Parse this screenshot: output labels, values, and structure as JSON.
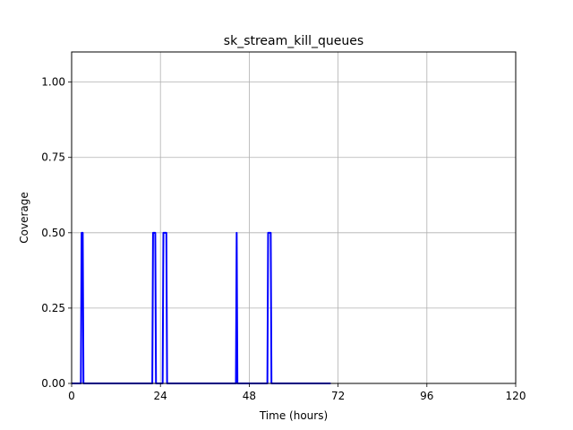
{
  "chart_data": {
    "type": "line",
    "title": "sk_stream_kill_queues",
    "xlabel": "Time (hours)",
    "ylabel": "Coverage",
    "xlim": [
      0,
      120
    ],
    "ylim": [
      0,
      1.1
    ],
    "xticks": [
      0,
      24,
      48,
      72,
      96,
      120
    ],
    "yticks": [
      0.0,
      0.25,
      0.5,
      0.75,
      1.0
    ],
    "xtick_labels": [
      "0",
      "24",
      "48",
      "72",
      "96",
      "120"
    ],
    "ytick_labels": [
      "0.00",
      "0.25",
      "0.50",
      "0.75",
      "1.00"
    ],
    "grid": true,
    "series": [
      {
        "color": "#0000ff",
        "x": [
          0,
          2.5,
          2.7,
          3.0,
          3.2,
          21.8,
          22.0,
          22.6,
          22.8,
          24.6,
          24.8,
          25.6,
          25.8,
          44.4,
          44.6,
          44.8,
          52.9,
          53.1,
          53.8,
          54.0,
          70
        ],
        "y": [
          0,
          0,
          0.5,
          0.5,
          0,
          0,
          0.5,
          0.5,
          0,
          0,
          0.5,
          0.5,
          0,
          0,
          0.5,
          0,
          0,
          0.5,
          0.5,
          0,
          0
        ]
      }
    ]
  }
}
